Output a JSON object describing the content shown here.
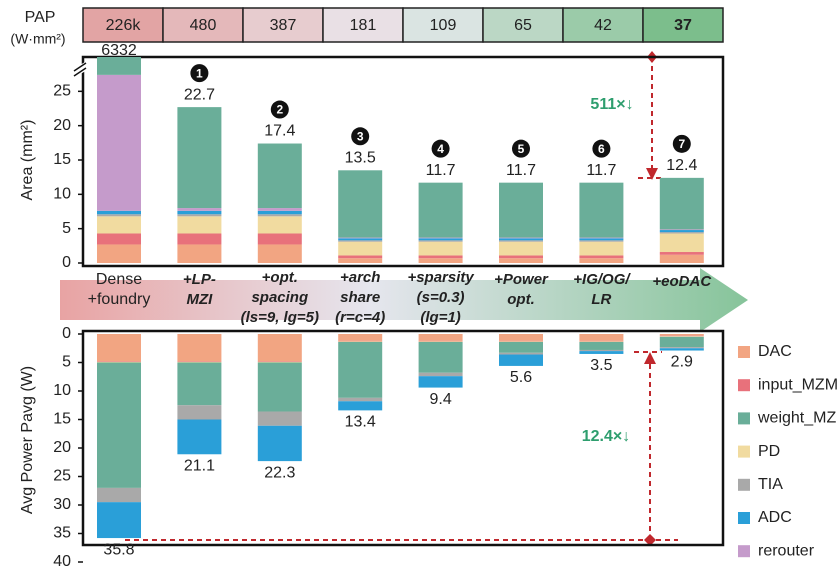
{
  "pap": {
    "title": "PAP",
    "unit": "(W·mm²)",
    "values": [
      {
        "value": 226000,
        "label": "226k"
      },
      480,
      387,
      181,
      109,
      65,
      42,
      37
    ]
  },
  "chart_data": [
    {
      "type": "stacked-bar",
      "y_label": "Area (mm²)",
      "categories": [
        [
          "Dense",
          "+foundry"
        ],
        [
          "+LP-",
          "MZI"
        ],
        [
          "+opt.",
          "spacing",
          "(ls=9, lg=5)"
        ],
        [
          "+arch",
          "share",
          "(r=c=4)"
        ],
        [
          "+sparsity",
          "(s=0.3)",
          "(lg=1)"
        ],
        [
          "+Power",
          "opt."
        ],
        [
          "+IG/OG/",
          "LR"
        ],
        [
          "+eoDAC"
        ]
      ],
      "step_labels": [
        null,
        1,
        2,
        3,
        4,
        5,
        6,
        7
      ],
      "totals": [
        6332,
        22.7,
        17.4,
        13.5,
        11.7,
        11.7,
        11.7,
        12.4
      ],
      "stack_order": [
        0,
        1,
        3,
        4,
        5,
        6,
        2
      ],
      "series": [
        {
          "name": "DAC",
          "color": "#f2a582",
          "values": [
            2.7,
            2.7,
            2.7,
            0.7,
            0.7,
            0.7,
            0.7,
            1.2
          ]
        },
        {
          "name": "input_MZM",
          "color": "#e8717b",
          "values": [
            1.6,
            1.6,
            1.6,
            0.4,
            0.4,
            0.4,
            0.4,
            0.4
          ]
        },
        {
          "name": "weight_MZI",
          "color": "#6aae99",
          "values": [
            6304.6,
            14.7,
            9.4,
            9.8,
            8.0,
            8.0,
            8.0,
            7.5
          ]
        },
        {
          "name": "PD",
          "color": "#f1dba0",
          "values": [
            2.5,
            2.5,
            2.5,
            2.0,
            2.0,
            2.0,
            2.0,
            2.7
          ]
        },
        {
          "name": "TIA",
          "color": "#a9a9a9",
          "values": [
            0.3,
            0.3,
            0.3,
            0.2,
            0.2,
            0.2,
            0.2,
            0.2
          ]
        },
        {
          "name": "ADC",
          "color": "#2a9fd8",
          "values": [
            0.5,
            0.5,
            0.5,
            0.3,
            0.3,
            0.3,
            0.3,
            0.3
          ]
        },
        {
          "name": "rerouter",
          "color": "#c59bcb",
          "values": [
            19.8,
            0.4,
            0.4,
            0.1,
            0.1,
            0.1,
            0.1,
            0.1
          ]
        }
      ],
      "ylim": [
        0,
        30
      ],
      "yticks": [
        0,
        5,
        10,
        15,
        20,
        25
      ],
      "axis_break": true,
      "annotation": "511×↓"
    },
    {
      "type": "stacked-bar",
      "y_label": "Avg Power Pavg (W)",
      "inverted": true,
      "totals": [
        35.8,
        21.1,
        22.3,
        13.4,
        9.4,
        5.6,
        3.5,
        2.9
      ],
      "stack_order": [
        0,
        1,
        3,
        2,
        4,
        5,
        6
      ],
      "series": [
        {
          "values": [
            4.8,
            4.8,
            4.8,
            1.2,
            1.2,
            1.2,
            1.2,
            0.3
          ]
        },
        {
          "values": [
            0.1,
            0.1,
            0.1,
            0.1,
            0.1,
            0.1,
            0.1,
            0.1
          ]
        },
        {
          "values": [
            22.0,
            7.5,
            8.6,
            9.8,
            5.4,
            1.9,
            1.4,
            1.8
          ]
        },
        {
          "values": [
            0.1,
            0.1,
            0.1,
            0.1,
            0.1,
            0.1,
            0.1,
            0.1
          ]
        },
        {
          "values": [
            2.5,
            2.5,
            2.5,
            0.6,
            0.6,
            0.3,
            0.2,
            0.2
          ]
        },
        {
          "values": [
            6.3,
            6.1,
            6.2,
            1.6,
            2.0,
            2.0,
            0.5,
            0.4
          ]
        },
        {
          "values": [
            0,
            0,
            0,
            0,
            0,
            0,
            0,
            0
          ]
        }
      ],
      "ylim": [
        0,
        40
      ],
      "yticks": [
        0,
        5,
        10,
        15,
        20,
        25,
        30,
        35,
        40
      ],
      "annotation": "12.4×↓"
    }
  ]
}
